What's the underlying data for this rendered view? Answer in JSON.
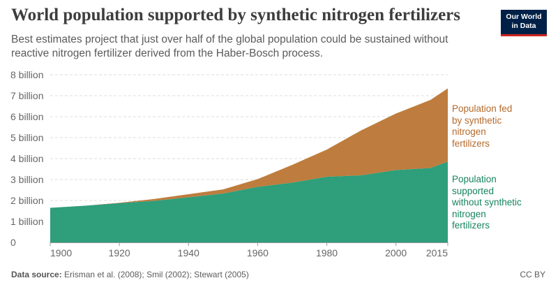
{
  "header": {
    "title": "World population supported by synthetic nitrogen fertilizers",
    "subtitle_lines": [
      "Best estimates project that just over half of the global population could be sustained without",
      "reactive nitrogen fertilizer derived from the Haber-Bosch process."
    ]
  },
  "logo": {
    "line1": "Our World",
    "line2": "in Data",
    "bg_color": "#002147",
    "accent_color": "#ce261e"
  },
  "footer": {
    "source_label": "Data source:",
    "source_text": "Erisman et al. (2008); Smil (2002); Stewart (2005)",
    "license": "CC BY"
  },
  "chart_data": {
    "type": "area",
    "stacked": true,
    "title": "World population supported by synthetic nitrogen fertilizers",
    "xlabel": "",
    "ylabel": "",
    "x": [
      1900,
      1910,
      1920,
      1930,
      1940,
      1950,
      1960,
      1970,
      1980,
      1990,
      2000,
      2010,
      2015
    ],
    "ylim": [
      0,
      8000000000
    ],
    "xlim": [
      1900,
      2015
    ],
    "y_ticks": [
      0,
      1000000000,
      2000000000,
      3000000000,
      4000000000,
      5000000000,
      6000000000,
      7000000000,
      8000000000
    ],
    "y_tick_labels": [
      "0",
      "1 billion",
      "2 billion",
      "3 billion",
      "4 billion",
      "5 billion",
      "6 billion",
      "7 billion",
      "8 billion"
    ],
    "x_ticks": [
      1900,
      1920,
      1940,
      1960,
      1980,
      2000,
      2015
    ],
    "x_tick_labels": [
      "1900",
      "1920",
      "1940",
      "1960",
      "1980",
      "2000",
      "2015"
    ],
    "grid": "horizontal dashed",
    "series": [
      {
        "name": "Population supported without synthetic nitrogen fertilizers",
        "legend_lines": [
          "Population",
          "supported",
          "without synthetic",
          "nitrogen",
          "fertilizers"
        ],
        "color": "#2e9e7b",
        "values": [
          1650000000,
          1750000000,
          1870000000,
          1980000000,
          2150000000,
          2330000000,
          2650000000,
          2850000000,
          3130000000,
          3200000000,
          3450000000,
          3550000000,
          3850000000
        ]
      },
      {
        "name": "Population fed by synthetic nitrogen fertilizers",
        "legend_lines": [
          "Population fed",
          "by synthetic",
          "nitrogen",
          "fertilizers"
        ],
        "color": "#be7d3e",
        "values": [
          0,
          0,
          20000000,
          90000000,
          150000000,
          200000000,
          370000000,
          850000000,
          1300000000,
          2150000000,
          2700000000,
          3250000000,
          3500000000
        ]
      }
    ]
  }
}
